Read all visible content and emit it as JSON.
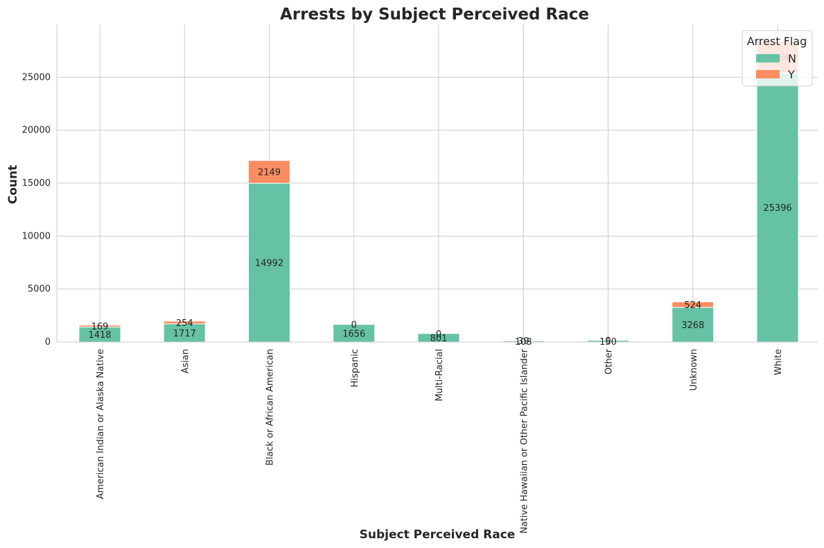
{
  "chart_data": {
    "type": "bar",
    "stacked": true,
    "title": "Arrests by Subject Perceived Race",
    "xlabel": "Subject Perceived Race",
    "ylabel": "Count",
    "ylim": [
      0,
      30000
    ],
    "yticks": [
      "0",
      "5000",
      "10000",
      "15000",
      "20000",
      "25000"
    ],
    "grid": true,
    "legend_position": "top-right",
    "legend_title": "Arrest Flag",
    "categories": [
      "American Indian or Alaska Native",
      "Asian",
      "Black or African American",
      "Hispanic",
      "Multi-Racial",
      "Native Hawaiian or Other Pacific Islander",
      "Other",
      "Unknown",
      "White"
    ],
    "series": [
      {
        "name": "N",
        "color": "#66c2a5",
        "values": [
          1418,
          1717,
          14992,
          1656,
          801,
          103,
          150,
          3268,
          25396
        ],
        "labels": [
          "1418",
          "1717",
          "14992",
          "1656",
          "801",
          "103",
          "150",
          "3268",
          "25396"
        ]
      },
      {
        "name": "Y",
        "color": "#fc8d62",
        "values": [
          169,
          254,
          2149,
          0,
          0,
          39,
          0,
          524,
          2964
        ],
        "labels": [
          "169",
          "254",
          "2149",
          "0",
          "0",
          "39",
          "0",
          "524",
          "2964"
        ]
      }
    ]
  }
}
